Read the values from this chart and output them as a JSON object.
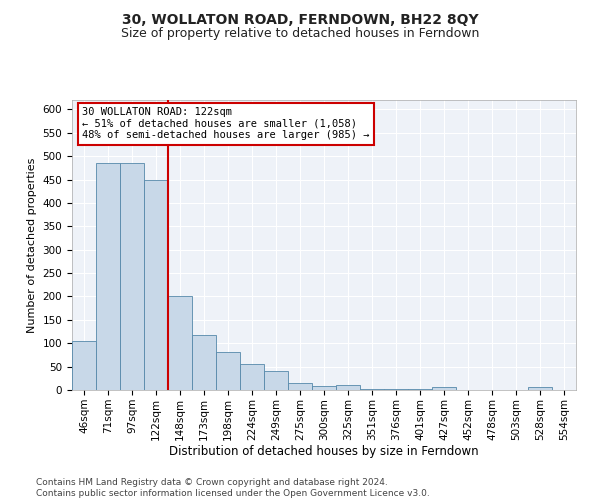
{
  "title": "30, WOLLATON ROAD, FERNDOWN, BH22 8QY",
  "subtitle": "Size of property relative to detached houses in Ferndown",
  "xlabel": "Distribution of detached houses by size in Ferndown",
  "ylabel": "Number of detached properties",
  "categories": [
    "46sqm",
    "71sqm",
    "97sqm",
    "122sqm",
    "148sqm",
    "173sqm",
    "198sqm",
    "224sqm",
    "249sqm",
    "275sqm",
    "300sqm",
    "325sqm",
    "351sqm",
    "376sqm",
    "401sqm",
    "427sqm",
    "452sqm",
    "478sqm",
    "503sqm",
    "528sqm",
    "554sqm"
  ],
  "values": [
    105,
    485,
    485,
    450,
    200,
    118,
    82,
    55,
    40,
    14,
    9,
    10,
    3,
    2,
    2,
    6,
    0,
    0,
    0,
    6,
    0
  ],
  "bar_color": "#c8d8e8",
  "bar_edge_color": "#5588aa",
  "highlight_index": 3,
  "highlight_line_color": "#cc0000",
  "annotation_text": "30 WOLLATON ROAD: 122sqm\n← 51% of detached houses are smaller (1,058)\n48% of semi-detached houses are larger (985) →",
  "annotation_box_color": "#ffffff",
  "annotation_box_edge": "#cc0000",
  "ylim": [
    0,
    620
  ],
  "yticks": [
    0,
    50,
    100,
    150,
    200,
    250,
    300,
    350,
    400,
    450,
    500,
    550,
    600
  ],
  "background_color": "#eef2f8",
  "footer": "Contains HM Land Registry data © Crown copyright and database right 2024.\nContains public sector information licensed under the Open Government Licence v3.0.",
  "title_fontsize": 10,
  "subtitle_fontsize": 9,
  "xlabel_fontsize": 8.5,
  "ylabel_fontsize": 8,
  "tick_fontsize": 7.5,
  "footer_fontsize": 6.5,
  "ann_fontsize": 7.5
}
